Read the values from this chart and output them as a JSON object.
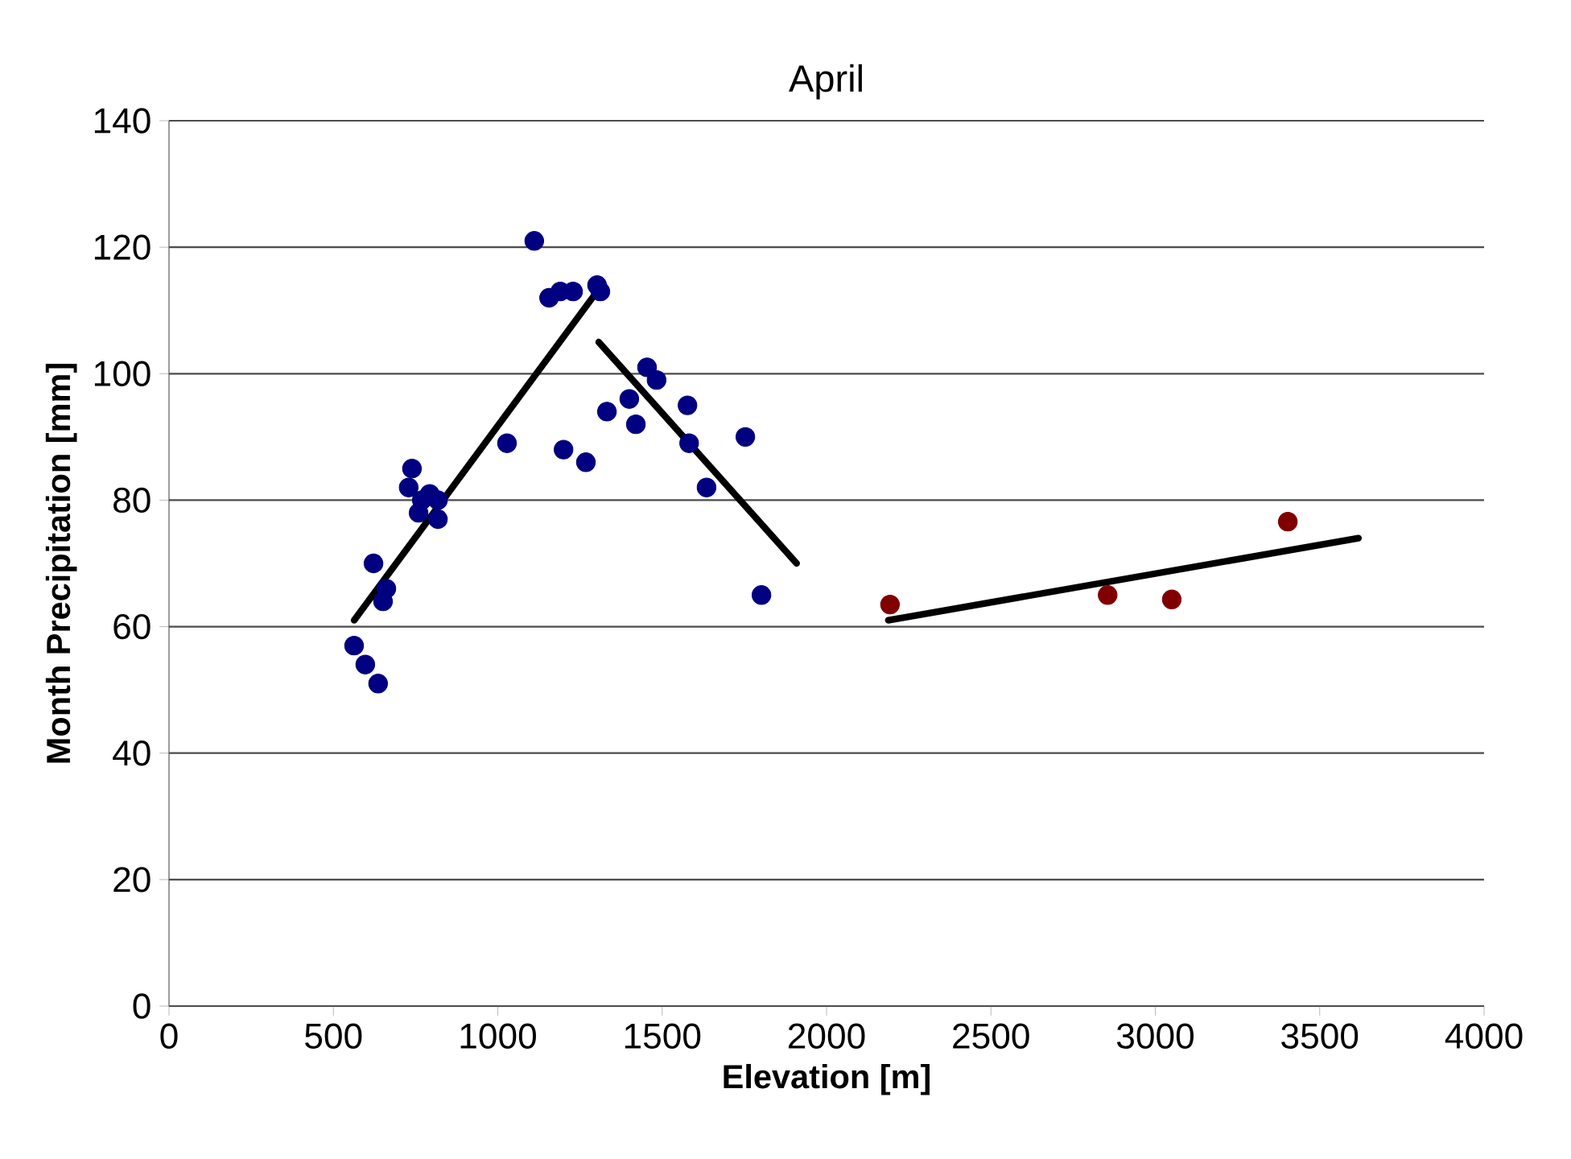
{
  "chart_data": {
    "type": "scatter",
    "title": "April",
    "xlabel": "Elevation [m]",
    "ylabel": "Month Precipitation [mm]",
    "xlim": [
      0,
      4000
    ],
    "xticks": [
      0,
      500,
      1000,
      1500,
      2000,
      2500,
      3000,
      3500,
      4000
    ],
    "ylim": [
      0,
      140
    ],
    "yticks": [
      0,
      20,
      40,
      60,
      80,
      100,
      120,
      140
    ],
    "grid": "y",
    "series": [
      {
        "marker": "circle",
        "color": "#000080",
        "x": [
          563,
          597,
          636,
          622,
          661,
          651,
          739,
          729,
          759,
          793,
          818,
          818,
          769,
          1028,
          1111,
          1156,
          1190,
          1229,
          1302,
          1312,
          1200,
          1268,
          1332,
          1400,
          1420,
          1454,
          1483,
          1577,
          1582,
          1635,
          1753,
          1802
        ],
        "values": [
          57,
          54,
          51,
          70,
          66,
          64,
          85,
          82,
          78,
          81,
          80,
          77,
          80,
          89,
          121,
          112,
          113,
          113,
          114,
          113,
          88,
          86,
          94,
          96,
          92,
          101,
          99,
          95,
          89,
          82,
          90,
          65
        ]
      },
      {
        "marker": "circle",
        "color": "#800000",
        "x": [
          2193,
          2855,
          3050,
          3403
        ],
        "values": [
          63.5,
          65,
          64.3,
          76.6
        ]
      },
      {
        "type": "line",
        "marker": "none",
        "color": "#000000",
        "x": [
          563,
          1302
        ],
        "values": [
          61,
          113
        ]
      },
      {
        "type": "line",
        "marker": "none",
        "color": "#000000",
        "x": [
          1307,
          1909
        ],
        "values": [
          105,
          70
        ]
      },
      {
        "type": "line",
        "marker": "none",
        "color": "#000000",
        "x": [
          2188,
          3618
        ],
        "values": [
          61,
          74
        ]
      }
    ]
  }
}
